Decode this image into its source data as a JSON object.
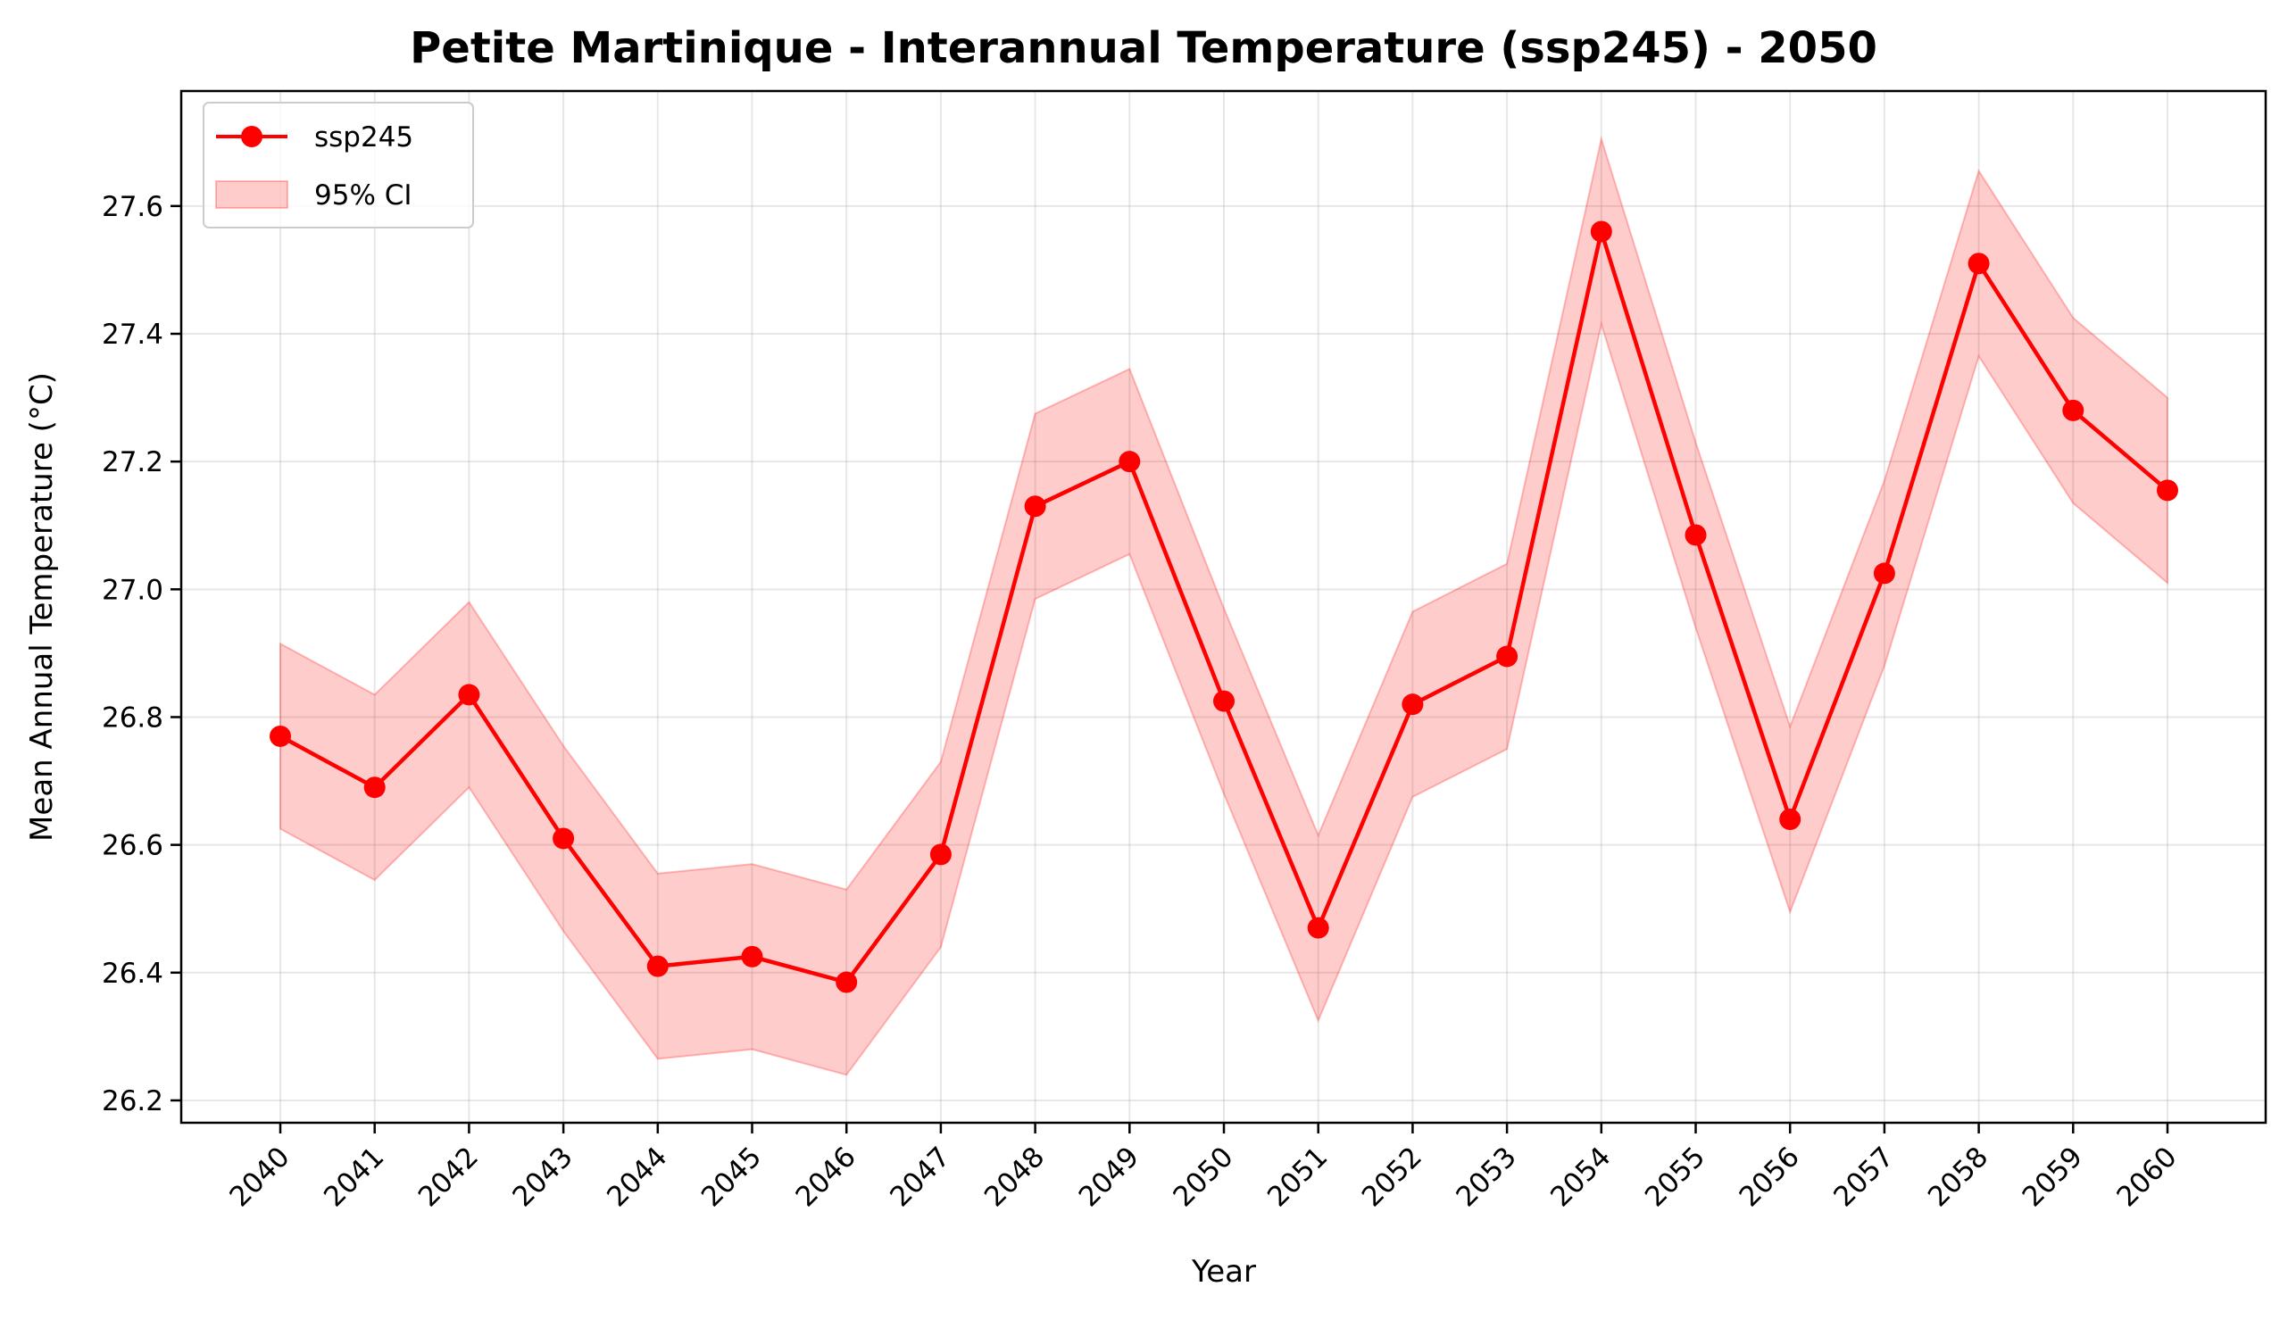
{
  "chart_data": {
    "type": "line",
    "title": "Petite Martinique - Interannual Temperature (ssp245) - 2050",
    "xlabel": "Year",
    "ylabel": "Mean Annual Temperature (°C)",
    "x": [
      "2040",
      "2041",
      "2042",
      "2043",
      "2044",
      "2045",
      "2046",
      "2047",
      "2048",
      "2049",
      "2050",
      "2051",
      "2052",
      "2053",
      "2054",
      "2055",
      "2056",
      "2057",
      "2058",
      "2059",
      "2060"
    ],
    "yticks": [
      26.2,
      26.4,
      26.6,
      26.8,
      27.0,
      27.2,
      27.4,
      27.6
    ],
    "ylim": [
      26.165,
      27.78
    ],
    "grid": true,
    "legend_position": "upper-left",
    "series": [
      {
        "name": "ssp245",
        "color": "#ff0000",
        "marker": "circle",
        "values": [
          26.77,
          26.69,
          26.835,
          26.61,
          26.41,
          26.425,
          26.385,
          26.585,
          27.13,
          27.2,
          26.825,
          26.47,
          26.82,
          26.895,
          27.56,
          27.085,
          26.64,
          27.025,
          27.51,
          27.28,
          27.155
        ]
      }
    ],
    "band": {
      "name": "95% CI",
      "color": "#ff0000",
      "opacity": 0.2,
      "lower": [
        26.625,
        26.545,
        26.69,
        26.465,
        26.265,
        26.28,
        26.24,
        26.44,
        26.985,
        27.055,
        26.68,
        26.325,
        26.675,
        26.75,
        27.415,
        26.94,
        26.495,
        26.88,
        27.365,
        27.135,
        27.01
      ],
      "upper": [
        26.915,
        26.835,
        26.98,
        26.755,
        26.555,
        26.57,
        26.53,
        26.73,
        27.275,
        27.345,
        26.97,
        26.615,
        26.965,
        27.04,
        27.705,
        27.23,
        26.785,
        27.17,
        27.655,
        27.425,
        27.3
      ]
    }
  }
}
